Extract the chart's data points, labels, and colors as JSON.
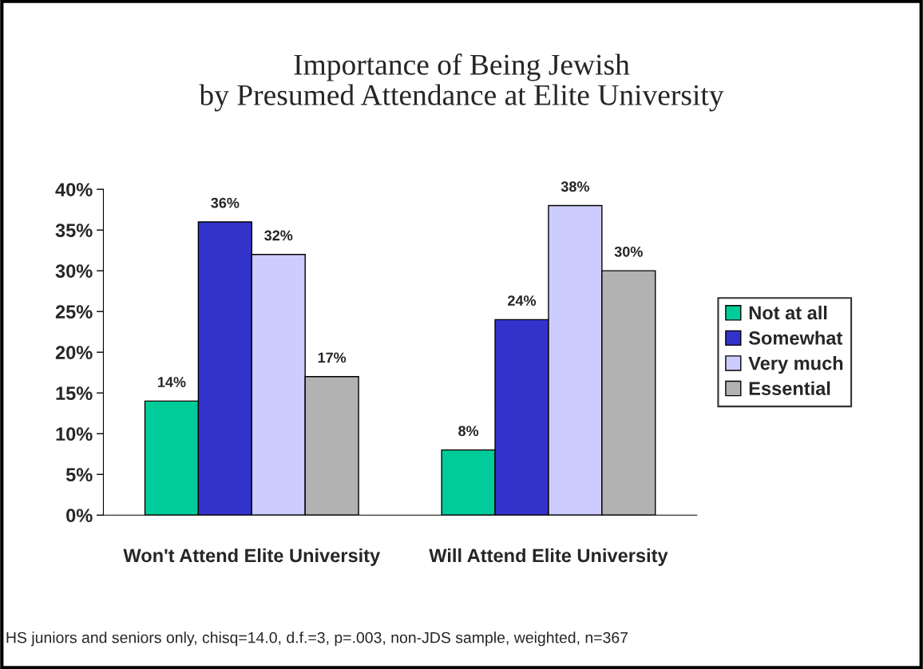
{
  "chart_data": {
    "type": "bar",
    "title": "Importance of Being Jewish\nby Presumed Attendance at Elite University",
    "categories": [
      "Won't Attend Elite University",
      "Will Attend Elite University"
    ],
    "series": [
      {
        "name": "Not at all",
        "color": "#00cc99",
        "values": [
          14,
          8
        ],
        "value_labels": [
          "14%",
          "8%"
        ]
      },
      {
        "name": "Somewhat",
        "color": "#3333cc",
        "values": [
          36,
          24
        ],
        "value_labels": [
          "36%",
          "24%"
        ]
      },
      {
        "name": "Very much",
        "color": "#ccccff",
        "values": [
          32,
          38
        ],
        "value_labels": [
          "32%",
          "38%"
        ]
      },
      {
        "name": "Essential",
        "color": "#b2b2b2",
        "values": [
          17,
          30
        ],
        "value_labels": [
          "17%",
          "30%"
        ]
      }
    ],
    "ylim": [
      0,
      40
    ],
    "yticks": [
      {
        "value": 0,
        "label": "0%"
      },
      {
        "value": 5,
        "label": "5%"
      },
      {
        "value": 10,
        "label": "10%"
      },
      {
        "value": 15,
        "label": "15%"
      },
      {
        "value": 20,
        "label": "20%"
      },
      {
        "value": 25,
        "label": "25%"
      },
      {
        "value": 30,
        "label": "30%"
      },
      {
        "value": 35,
        "label": "35%"
      },
      {
        "value": 40,
        "label": "40%"
      }
    ],
    "grid": false,
    "legend": "right",
    "annotations": [
      "HS juniors and seniors only, chisq=14.0, d.f.=3, p=.003, non-JDS sample, weighted, n=367"
    ]
  }
}
